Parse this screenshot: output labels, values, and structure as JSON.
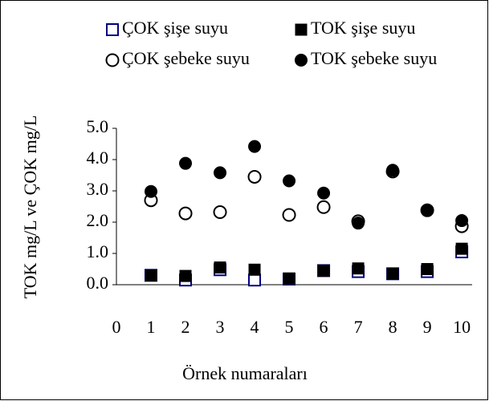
{
  "chart_data": {
    "type": "scatter",
    "x_label": "Örnek numaraları",
    "y_label": "TOK mg/L ve ÇOK mg/L",
    "x": [
      1,
      2,
      3,
      4,
      5,
      6,
      7,
      8,
      9,
      10
    ],
    "series": [
      {
        "name": "ÇOK şişe suyu",
        "color": "#000080",
        "marker": "square-open",
        "values": [
          0.3,
          0.15,
          0.48,
          0.15,
          0.18,
          0.45,
          0.42,
          0.35,
          0.42,
          1.05
        ]
      },
      {
        "name": "TOK şişe suyu",
        "color": "#000000",
        "marker": "square-filled",
        "values": [
          0.3,
          0.28,
          0.55,
          0.48,
          0.2,
          0.45,
          0.52,
          0.35,
          0.5,
          1.15
        ]
      },
      {
        "name": "ÇOK şebeke suyu",
        "color": "#000000",
        "marker": "circle-open",
        "values": [
          2.7,
          2.28,
          2.32,
          3.45,
          2.23,
          2.48,
          2.03,
          3.62,
          2.38,
          1.87
        ]
      },
      {
        "name": "TOK şebeke suyu",
        "color": "#000000",
        "marker": "circle-filled",
        "values": [
          2.98,
          3.88,
          3.58,
          4.42,
          3.32,
          2.93,
          1.97,
          3.66,
          2.38,
          2.05
        ]
      }
    ],
    "xlim": [
      0,
      10.3
    ],
    "xticks": [
      0,
      1,
      2,
      3,
      4,
      5,
      6,
      7,
      8,
      9,
      10
    ],
    "ylim": [
      0,
      5
    ],
    "yticks": [
      {
        "value": 0,
        "label": "0.0"
      },
      {
        "value": 1,
        "label": "1.0"
      },
      {
        "value": 2,
        "label": "2.0"
      },
      {
        "value": 3,
        "label": "3.0"
      },
      {
        "value": 4,
        "label": "4.0"
      },
      {
        "value": 5,
        "label": "5.0"
      }
    ],
    "grid": false
  }
}
